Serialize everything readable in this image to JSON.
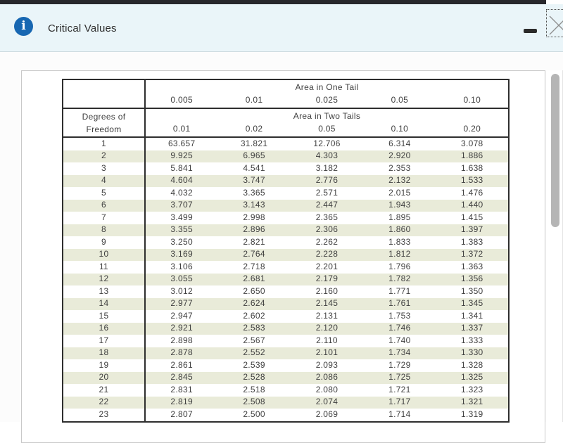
{
  "window": {
    "title": "Critical Values",
    "info_glyph": "i",
    "minimize_label": "minimize-window",
    "close_label": "close-window"
  },
  "colors": {
    "titlebar_bg": "#eaf5f9",
    "info_icon_blue": "#1767b2",
    "row_shade": "#e9ebd9",
    "table_border": "#2e2e2e"
  },
  "table": {
    "type": "table",
    "one_tail_label": "Area in One Tail",
    "one_tail_values": [
      "0.005",
      "0.01",
      "0.025",
      "0.05",
      "0.10"
    ],
    "two_tail_label": "Area in Two Tails",
    "two_tail_values": [
      "0.01",
      "0.02",
      "0.05",
      "0.10",
      "0.20"
    ],
    "row_header_line1": "Degrees of",
    "row_header_line2": "Freedom",
    "rows": [
      [
        "1",
        "63.657",
        "31.821",
        "12.706",
        "6.314",
        "3.078"
      ],
      [
        "2",
        "9.925",
        "6.965",
        "4.303",
        "2.920",
        "1.886"
      ],
      [
        "3",
        "5.841",
        "4.541",
        "3.182",
        "2.353",
        "1.638"
      ],
      [
        "4",
        "4.604",
        "3.747",
        "2.776",
        "2.132",
        "1.533"
      ],
      [
        "5",
        "4.032",
        "3.365",
        "2.571",
        "2.015",
        "1.476"
      ],
      [
        "6",
        "3.707",
        "3.143",
        "2.447",
        "1.943",
        "1.440"
      ],
      [
        "7",
        "3.499",
        "2.998",
        "2.365",
        "1.895",
        "1.415"
      ],
      [
        "8",
        "3.355",
        "2.896",
        "2.306",
        "1.860",
        "1.397"
      ],
      [
        "9",
        "3.250",
        "2.821",
        "2.262",
        "1.833",
        "1.383"
      ],
      [
        "10",
        "3.169",
        "2.764",
        "2.228",
        "1.812",
        "1.372"
      ],
      [
        "11",
        "3.106",
        "2.718",
        "2.201",
        "1.796",
        "1.363"
      ],
      [
        "12",
        "3.055",
        "2.681",
        "2.179",
        "1.782",
        "1.356"
      ],
      [
        "13",
        "3.012",
        "2.650",
        "2.160",
        "1.771",
        "1.350"
      ],
      [
        "14",
        "2.977",
        "2.624",
        "2.145",
        "1.761",
        "1.345"
      ],
      [
        "15",
        "2.947",
        "2.602",
        "2.131",
        "1.753",
        "1.341"
      ],
      [
        "16",
        "2.921",
        "2.583",
        "2.120",
        "1.746",
        "1.337"
      ],
      [
        "17",
        "2.898",
        "2.567",
        "2.110",
        "1.740",
        "1.333"
      ],
      [
        "18",
        "2.878",
        "2.552",
        "2.101",
        "1.734",
        "1.330"
      ],
      [
        "19",
        "2.861",
        "2.539",
        "2.093",
        "1.729",
        "1.328"
      ],
      [
        "20",
        "2.845",
        "2.528",
        "2.086",
        "1.725",
        "1.325"
      ],
      [
        "21",
        "2.831",
        "2.518",
        "2.080",
        "1.721",
        "1.323"
      ],
      [
        "22",
        "2.819",
        "2.508",
        "2.074",
        "1.717",
        "1.321"
      ],
      [
        "23",
        "2.807",
        "2.500",
        "2.069",
        "1.714",
        "1.319"
      ]
    ]
  }
}
